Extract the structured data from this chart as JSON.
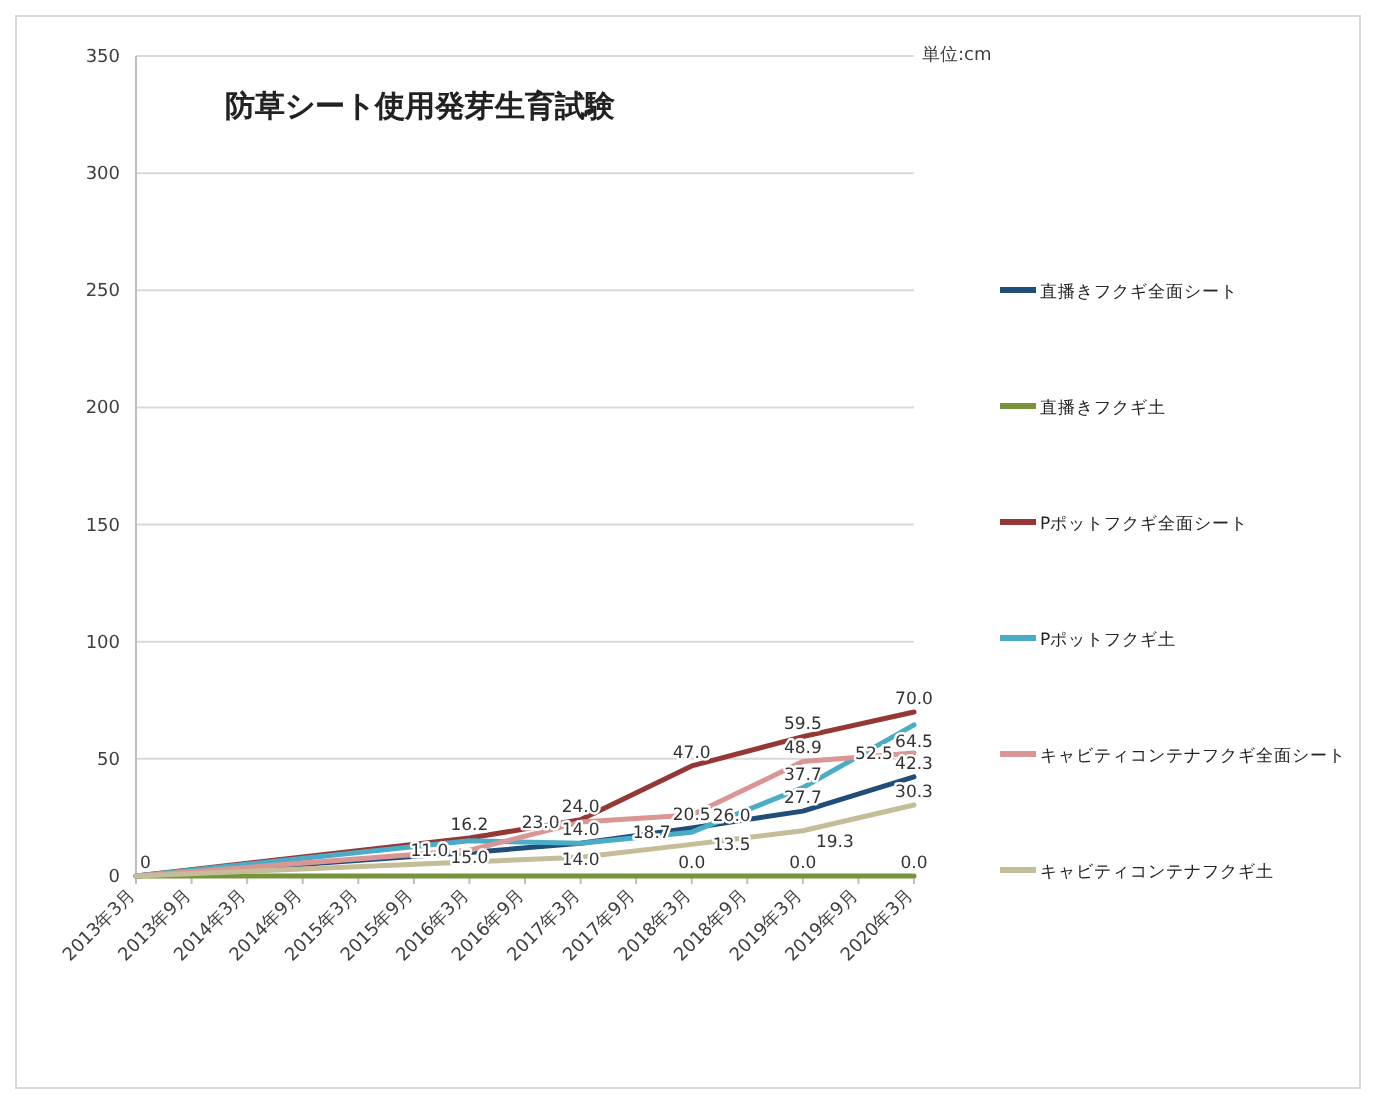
{
  "chart_data": {
    "type": "line",
    "title": "防草シート使用発芽生育試験",
    "annotations": [
      "単位:cm"
    ],
    "x": [
      "2013-03",
      "2016-03",
      "2017-03",
      "2018-03",
      "2019-03",
      "2020-03"
    ],
    "xlim": [
      "2013-03",
      "2020-03"
    ],
    "xticks": [
      {
        "value": "2013-03",
        "label": "2013年3月"
      },
      {
        "value": "2013-09",
        "label": "2013年9月"
      },
      {
        "value": "2014-03",
        "label": "2014年3月"
      },
      {
        "value": "2014-09",
        "label": "2014年9月"
      },
      {
        "value": "2015-03",
        "label": "2015年3月"
      },
      {
        "value": "2015-09",
        "label": "2015年9月"
      },
      {
        "value": "2016-03",
        "label": "2016年3月"
      },
      {
        "value": "2016-09",
        "label": "2016年9月"
      },
      {
        "value": "2017-03",
        "label": "2017年3月"
      },
      {
        "value": "2017-09",
        "label": "2017年9月"
      },
      {
        "value": "2018-03",
        "label": "2018年3月"
      },
      {
        "value": "2018-09",
        "label": "2018年9月"
      },
      {
        "value": "2019-03",
        "label": "2019年3月"
      },
      {
        "value": "2019-09",
        "label": "2019年9月"
      },
      {
        "value": "2020-03",
        "label": "2020年3月"
      }
    ],
    "ylim": [
      0,
      350
    ],
    "yticks": [
      0,
      50,
      100,
      150,
      200,
      250,
      300,
      350
    ],
    "grid": "y",
    "legend": "right",
    "marker": "none",
    "line_style": "solid",
    "series": [
      {
        "name": "直播きフクギ全面シート",
        "color": "#1f4e79",
        "values": [
          0,
          10.0,
          14.0,
          20.5,
          27.7,
          42.3
        ],
        "value_labels": [
          null,
          null,
          "14.0",
          "20.5",
          "27.7",
          "42.3"
        ]
      },
      {
        "name": "直播きフクギ土",
        "color": "#77933c",
        "values": [
          0,
          0,
          0,
          0,
          0,
          0
        ],
        "value_labels": [
          null,
          null,
          null,
          "0.0",
          "0.0",
          "0.0"
        ]
      },
      {
        "name": "Pポットフクギ全面シート",
        "color": "#953735",
        "values": [
          0,
          16.2,
          24.0,
          47.0,
          59.5,
          70.0
        ],
        "value_labels": [
          "0",
          "16.2",
          "24.0",
          "47.0",
          "59.5",
          "70.0"
        ]
      },
      {
        "name": "Pポットフクギ土",
        "color": "#4bacc6",
        "values": [
          0,
          15.0,
          14.0,
          18.7,
          37.7,
          64.5
        ],
        "value_labels": [
          null,
          "15.0",
          "14.0",
          "18.7",
          "37.7",
          "64.5"
        ]
      },
      {
        "name": "キャビティコンテナフクギ全面シート",
        "color": "#d99694",
        "values": [
          0,
          11.0,
          23.0,
          26.0,
          48.9,
          52.5
        ],
        "value_labels": [
          null,
          "11.0",
          "23.0",
          "26.0",
          "48.9",
          "52.5"
        ]
      },
      {
        "name": "キャビティコンテナフクギ土",
        "color": "#c4bd97",
        "values": [
          0,
          6.0,
          8.0,
          13.5,
          19.3,
          30.3
        ],
        "value_labels": [
          null,
          null,
          null,
          "13.5",
          "19.3",
          "30.3"
        ]
      }
    ]
  }
}
